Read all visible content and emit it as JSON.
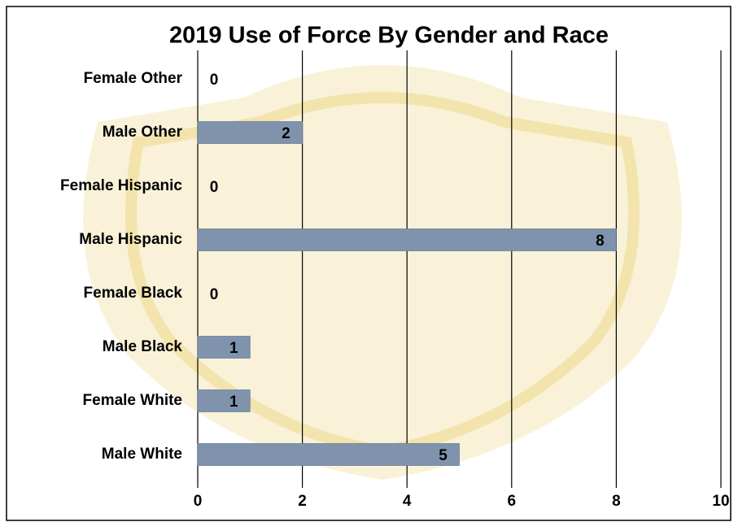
{
  "chart_data": {
    "type": "barh",
    "title": "2019  Use of Force By Gender and Race",
    "categories": [
      "Female Other",
      "Male Other",
      "Female Hispanic",
      "Male Hispanic",
      "Female Black",
      "Male Black",
      "Female White",
      "Male White"
    ],
    "values": [
      0,
      2,
      0,
      8,
      0,
      1,
      1,
      5
    ],
    "color": "#8093ad",
    "xlim": [
      0,
      10
    ],
    "xticks": [
      0,
      2,
      4,
      6,
      8,
      10
    ],
    "grid": true
  }
}
